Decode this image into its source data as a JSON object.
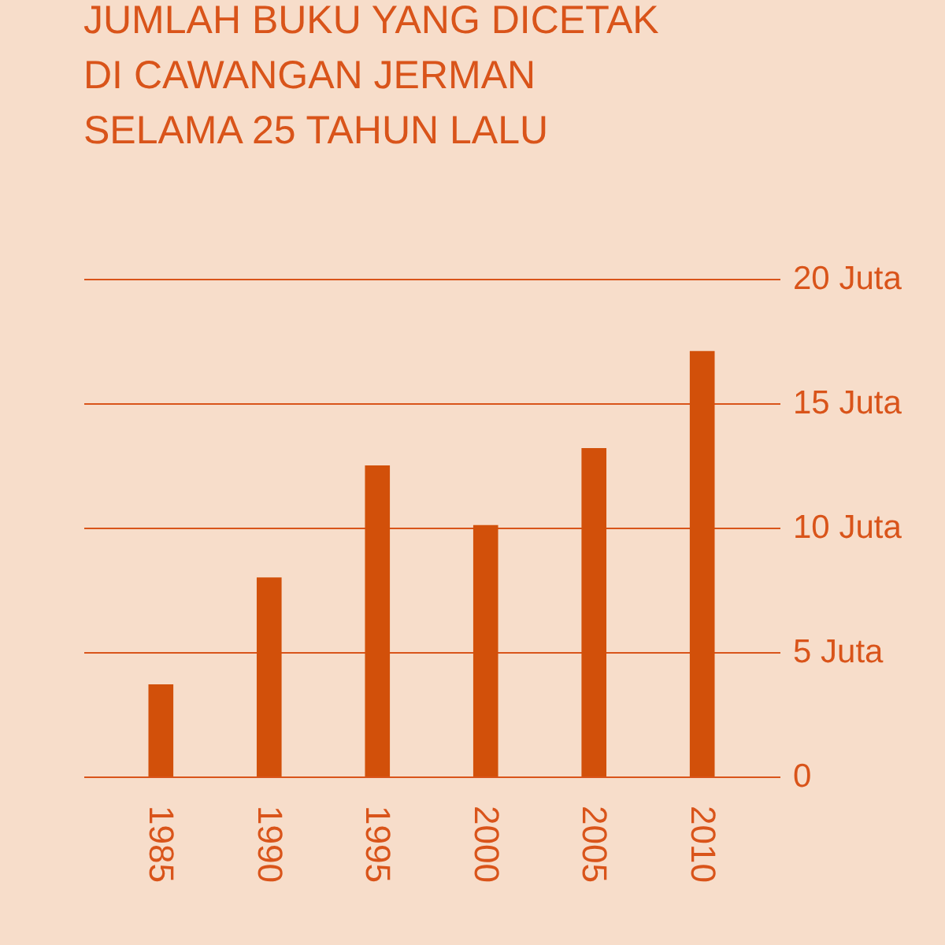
{
  "chart_data": {
    "type": "bar",
    "title": "JUMLAH BUKU YANG DICETAK\nDI CAWANGAN JERMAN\nSELAMA 25 TAHUN LALU",
    "categories": [
      "1985",
      "1990",
      "1995",
      "2000",
      "2005",
      "2010"
    ],
    "values": [
      3.7,
      8,
      12.5,
      10.1,
      13.2,
      17.1
    ],
    "color": "#d2500a",
    "ylim": [
      0,
      20
    ],
    "yticks": [
      0,
      {
        "value": 5,
        "label": "5 Juta"
      },
      {
        "value": 10,
        "label": "10 Juta"
      },
      {
        "value": 15,
        "label": "15 Juta"
      },
      {
        "value": 20,
        "label": "20 Juta"
      }
    ],
    "grid": "y"
  }
}
